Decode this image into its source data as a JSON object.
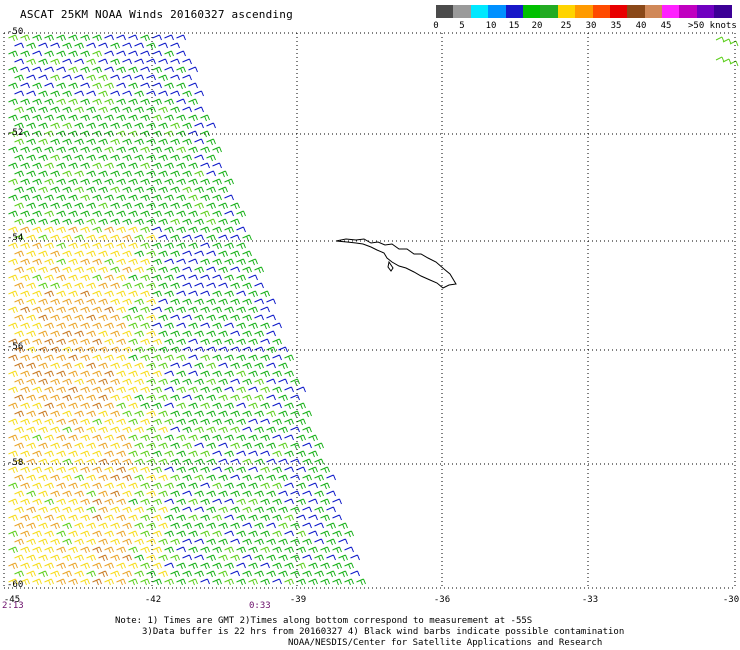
{
  "title": "ASCAT 25KM NOAA Winds 20160327 ascending",
  "legend": {
    "unit_label": ">50 knots",
    "ticks": [
      "0",
      "5",
      "10",
      "15",
      "20",
      "25",
      "30",
      "35",
      "40",
      "45"
    ],
    "colors": [
      "#4b4b4b",
      "#9a9a9a",
      "#00e8ff",
      "#0090ff",
      "#1818c8",
      "#00c000",
      "#23ab23",
      "#ffd400",
      "#ff9a00",
      "#ff4a00",
      "#e80000",
      "#8a4818",
      "#d08858",
      "#ff20ff",
      "#c000c0",
      "#7000c0",
      "#3c0096"
    ]
  },
  "map": {
    "lat_labels": [
      "-50",
      "-52",
      "-54",
      "-56",
      "-58",
      "-60"
    ],
    "lon_labels": [
      "-45",
      "-42",
      "-39",
      "-36",
      "-33",
      "-30"
    ],
    "time_labels": [
      "2:13",
      "0:33"
    ],
    "barb_colors": {
      "blue": "#0a16c8",
      "green": "#16b016",
      "lime": "#5ccf1c",
      "yellow": "#f6dc1c",
      "orange": "#e9a52a",
      "darkorange": "#c87a22"
    }
  },
  "notes": {
    "line1": "Note: 1) Times are GMT 2)Times along bottom correspond to measurement at -55S",
    "line2": "3)Data buffer is 22 hrs from 20160327 4) Black wind barbs indicate possible contamination",
    "line3": "NOAA/NESDIS/Center for Satellite Applications and Research"
  }
}
